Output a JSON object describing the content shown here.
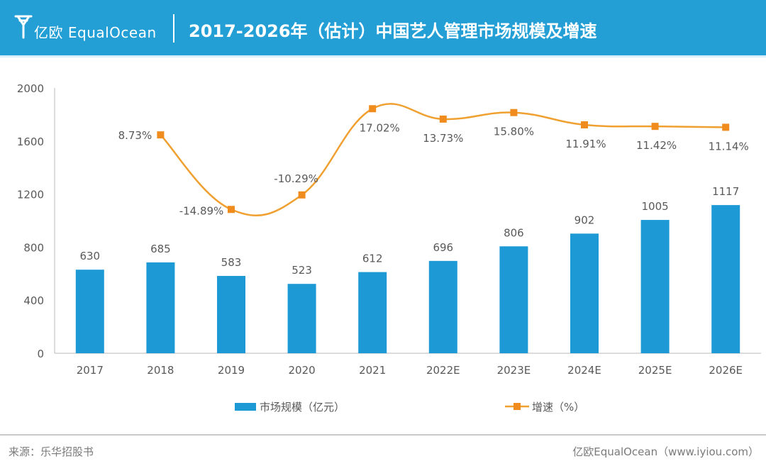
{
  "header": {
    "logo_text": "亿欧 EqualOcean",
    "title": "2017-2026年（估计）中国艺人管理市场规模及增速"
  },
  "footer": {
    "source": "来源：乐华招股书",
    "brand": "亿欧EqualOcean（www.iyiou.com）"
  },
  "colors": {
    "header_bg": "#239fd6",
    "bar": "#1d9ad6",
    "line": "#f0a030",
    "marker": "#f08c1e"
  },
  "chart_data": {
    "type": "bar",
    "categories": [
      "2017",
      "2018",
      "2019",
      "2020",
      "2021",
      "2022E",
      "2023E",
      "2024E",
      "2025E",
      "2026E"
    ],
    "ylim": [
      0,
      2000
    ],
    "yticks": [
      "0",
      "400",
      "800",
      "1200",
      "1600",
      "2000"
    ],
    "grid": false,
    "legend_position": "bottom",
    "series": [
      {
        "name": "市场规模（亿元）",
        "type": "bar",
        "values": [
          630,
          685,
          583,
          523,
          612,
          696,
          806,
          902,
          1005,
          1117
        ],
        "labels": [
          "630",
          "685",
          "583",
          "523",
          "612",
          "696",
          "806",
          "902",
          "1005",
          "1117"
        ]
      },
      {
        "name": "增速（%）",
        "type": "line",
        "smooth": true,
        "values": [
          null,
          8.73,
          -14.89,
          -10.29,
          17.02,
          13.73,
          15.8,
          11.91,
          11.42,
          11.14
        ],
        "labels": [
          "",
          "8.73%",
          "-14.89%",
          "-10.29%",
          "17.02%",
          "13.73%",
          "15.80%",
          "11.91%",
          "11.42%",
          "11.14%"
        ]
      }
    ]
  }
}
